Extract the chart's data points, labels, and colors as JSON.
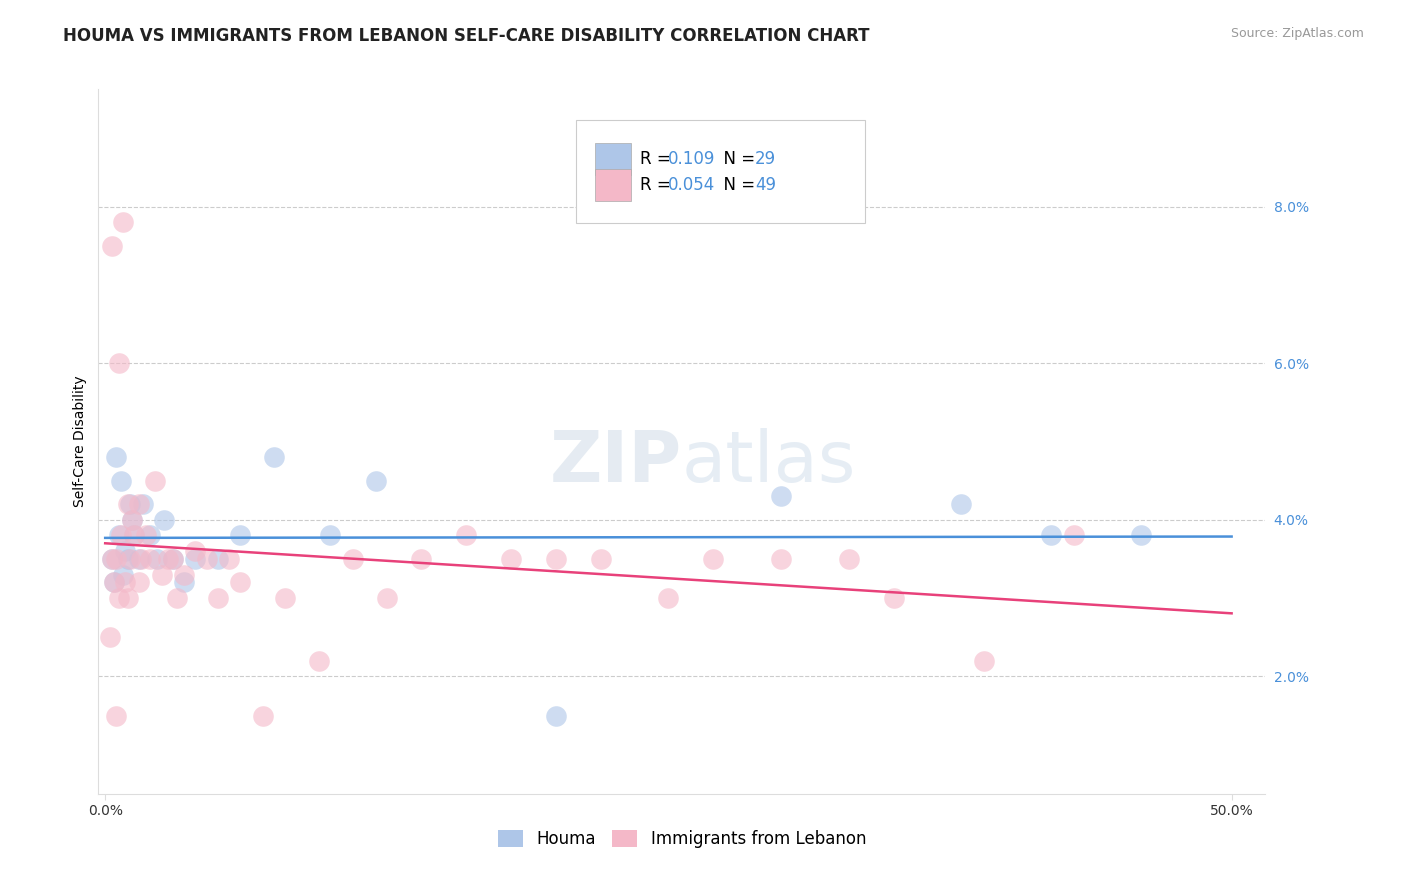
{
  "title": "HOUMA VS IMMIGRANTS FROM LEBANON SELF-CARE DISABILITY CORRELATION CHART",
  "source": "Source: ZipAtlas.com",
  "ylabel": "Self-Care Disability",
  "xlim": [
    0.0,
    50.0
  ],
  "ylim": [
    0.5,
    9.5
  ],
  "ytick_vals": [
    2.0,
    4.0,
    6.0,
    8.0
  ],
  "ytick_labels": [
    "2.0%",
    "4.0%",
    "6.0%",
    "8.0%"
  ],
  "houma_color": "#aec6e8",
  "houma_edge": "#7bafd4",
  "lebanon_color": "#f4b8c8",
  "lebanon_edge": "#e87aa0",
  "houma_line_color": "#4a90d9",
  "lebanon_line_color": "#e8417a",
  "background_color": "#ffffff",
  "grid_color": "#cccccc",
  "houma_x": [
    0.3,
    0.4,
    0.5,
    0.6,
    0.7,
    0.8,
    0.9,
    1.0,
    1.1,
    1.2,
    1.3,
    1.5,
    1.7,
    2.0,
    2.3,
    2.6,
    3.0,
    3.5,
    4.0,
    5.0,
    6.0,
    7.5,
    10.0,
    12.0,
    20.0,
    30.0,
    38.0,
    42.0,
    46.0
  ],
  "houma_y": [
    3.5,
    3.2,
    4.8,
    3.8,
    4.5,
    3.3,
    3.6,
    3.5,
    4.2,
    4.0,
    3.8,
    3.5,
    4.2,
    3.8,
    3.5,
    4.0,
    3.5,
    3.2,
    3.5,
    3.5,
    3.8,
    4.8,
    3.8,
    4.5,
    1.5,
    4.3,
    4.2,
    3.8,
    3.8
  ],
  "lebanon_x": [
    0.2,
    0.3,
    0.4,
    0.5,
    0.5,
    0.6,
    0.7,
    0.8,
    0.9,
    1.0,
    1.0,
    1.1,
    1.2,
    1.3,
    1.5,
    1.6,
    1.8,
    2.0,
    2.2,
    2.5,
    2.8,
    3.0,
    3.2,
    3.5,
    4.0,
    4.5,
    5.0,
    5.5,
    6.0,
    7.0,
    8.0,
    9.5,
    11.0,
    12.5,
    14.0,
    16.0,
    18.0,
    20.0,
    22.0,
    25.0,
    27.0,
    30.0,
    33.0,
    35.0,
    39.0,
    43.0,
    0.3,
    0.6,
    1.5
  ],
  "lebanon_y": [
    2.5,
    7.5,
    3.2,
    3.5,
    1.5,
    6.0,
    3.8,
    7.8,
    3.2,
    4.2,
    3.0,
    3.5,
    4.0,
    3.8,
    4.2,
    3.5,
    3.8,
    3.5,
    4.5,
    3.3,
    3.5,
    3.5,
    3.0,
    3.3,
    3.6,
    3.5,
    3.0,
    3.5,
    3.2,
    1.5,
    3.0,
    2.2,
    3.5,
    3.0,
    3.5,
    3.8,
    3.5,
    3.5,
    3.5,
    3.0,
    3.5,
    3.5,
    3.5,
    3.0,
    2.2,
    3.8,
    3.5,
    3.0,
    3.2
  ],
  "watermark_zip": "ZIP",
  "watermark_atlas": "atlas",
  "title_fontsize": 12,
  "axis_label_fontsize": 10,
  "tick_fontsize": 10,
  "legend_fontsize": 12
}
